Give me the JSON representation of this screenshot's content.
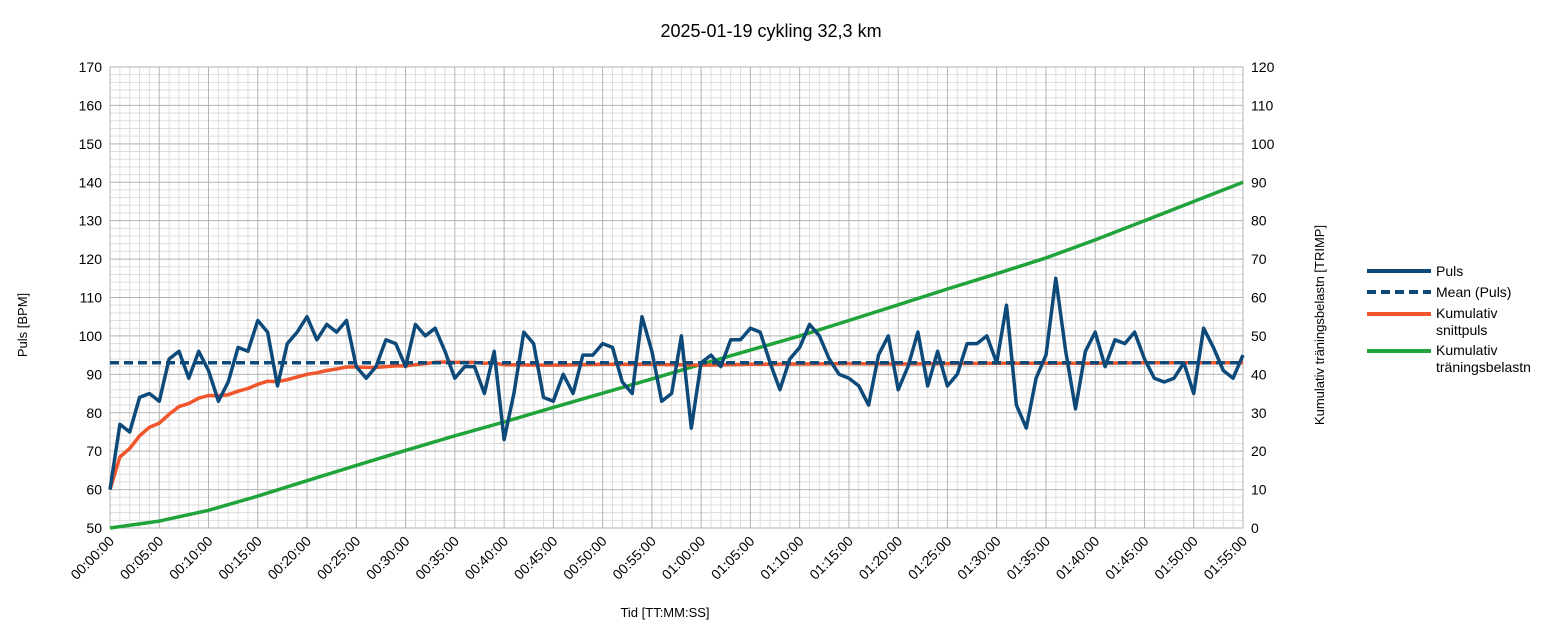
{
  "chart_data": {
    "type": "line",
    "title": "2025-01-19 cykling 32,3 km",
    "xlabel": "Tid [TT:MM:SS]",
    "ylabel": "Puls [BPM]",
    "y2label": "Kumulativ träningsbelastn [TRIMP]",
    "ylim": [
      50,
      170
    ],
    "y2lim": [
      0,
      120
    ],
    "xlim_minutes": [
      0,
      115
    ],
    "grid": true,
    "legend_position": "right",
    "x_ticks": [
      "00:00:00",
      "00:05:00",
      "00:10:00",
      "00:15:00",
      "00:20:00",
      "00:25:00",
      "00:30:00",
      "00:35:00",
      "00:40:00",
      "00:45:00",
      "00:50:00",
      "00:55:00",
      "01:00:00",
      "01:05:00",
      "01:10:00",
      "01:15:00",
      "01:20:00",
      "01:25:00",
      "01:30:00",
      "01:35:00",
      "01:40:00",
      "01:45:00",
      "01:50:00",
      "01:55:00"
    ],
    "y_ticks": [
      "50",
      "60",
      "70",
      "80",
      "90",
      "100",
      "110",
      "120",
      "130",
      "140",
      "150",
      "160",
      "170"
    ],
    "y2_ticks": [
      "0",
      "10",
      "20",
      "30",
      "40",
      "50",
      "60",
      "70",
      "80",
      "90",
      "100",
      "110",
      "120"
    ],
    "series": [
      {
        "name": "Puls",
        "axis": "left",
        "color": "#0d4a7a",
        "style": "solid",
        "x_minutes": [
          0,
          1,
          2,
          3,
          4,
          5,
          6,
          7,
          8,
          9,
          10,
          11,
          12,
          13,
          14,
          15,
          16,
          17,
          18,
          19,
          20,
          21,
          22,
          23,
          24,
          25,
          26,
          27,
          28,
          29,
          30,
          31,
          32,
          33,
          34,
          35,
          36,
          37,
          38,
          39,
          40,
          41,
          42,
          43,
          44,
          45,
          46,
          47,
          48,
          49,
          50,
          51,
          52,
          53,
          54,
          55,
          56,
          57,
          58,
          59,
          60,
          61,
          62,
          63,
          64,
          65,
          66,
          67,
          68,
          69,
          70,
          71,
          72,
          73,
          74,
          75,
          76,
          77,
          78,
          79,
          80,
          81,
          82,
          83,
          84,
          85,
          86,
          87,
          88,
          89,
          90,
          91,
          92,
          93,
          94,
          95,
          96,
          97,
          98,
          99,
          100,
          101,
          102,
          103,
          104,
          105,
          106,
          107,
          108,
          109,
          110,
          111,
          112,
          113,
          114,
          115
        ],
        "values": [
          60,
          77,
          75,
          84,
          85,
          83,
          94,
          96,
          89,
          96,
          91,
          83,
          88,
          97,
          96,
          104,
          101,
          87,
          98,
          101,
          105,
          99,
          103,
          101,
          104,
          92,
          89,
          92,
          99,
          98,
          92,
          103,
          100,
          102,
          96,
          89,
          92,
          92,
          85,
          96,
          73,
          85,
          101,
          98,
          84,
          83,
          90,
          85,
          95,
          95,
          98,
          97,
          88,
          85,
          105,
          96,
          83,
          85,
          100,
          76,
          93,
          95,
          92,
          99,
          99,
          102,
          101,
          93,
          86,
          94,
          97,
          103,
          100,
          94,
          90,
          89,
          87,
          82,
          95,
          100,
          86,
          92,
          101,
          87,
          96,
          87,
          90,
          98,
          98,
          100,
          93,
          108,
          82,
          76,
          89,
          95,
          115,
          96,
          81,
          96,
          101,
          92,
          99,
          98,
          101,
          94,
          89,
          88,
          89,
          93,
          85,
          102,
          97,
          91,
          89,
          95
        ]
      },
      {
        "name": "Mean (Puls)",
        "axis": "left",
        "color": "#0d4a7a",
        "style": "dashed",
        "x_minutes": [
          0,
          115
        ],
        "values": [
          93,
          93
        ]
      },
      {
        "name": "Kumulativ snittpuls",
        "axis": "left",
        "color": "#f0552b",
        "style": "solid",
        "x_minutes": [
          0,
          1,
          2,
          3,
          4,
          5,
          6,
          7,
          8,
          9,
          10,
          11,
          12,
          13,
          14,
          15,
          16,
          17,
          18,
          19,
          20,
          21,
          22,
          23,
          24,
          25,
          26,
          27,
          28,
          29,
          30,
          31,
          32,
          33,
          34,
          35,
          36,
          37,
          38,
          39,
          40,
          45,
          50,
          55,
          60,
          65,
          70,
          75,
          80,
          85,
          90,
          95,
          100,
          105,
          110,
          115
        ],
        "values": [
          60,
          68.5,
          70.7,
          74,
          76.2,
          77.3,
          79.6,
          81.6,
          82.4,
          83.8,
          84.5,
          84.4,
          84.7,
          85.6,
          86.3,
          87.4,
          88.2,
          88.1,
          88.6,
          89.3,
          90.0,
          90.4,
          91.0,
          91.4,
          91.9,
          91.9,
          91.8,
          91.8,
          92.0,
          92.2,
          92.2,
          92.5,
          92.8,
          93.1,
          93.2,
          93.1,
          93.1,
          93.1,
          92.9,
          93.0,
          92.5,
          92.4,
          92.6,
          92.6,
          92.4,
          92.6,
          92.7,
          92.8,
          92.7,
          92.8,
          92.9,
          92.9,
          92.9,
          93.0,
          93.0,
          93.0
        ]
      },
      {
        "name": "Kumulativ träningsbelastn",
        "axis": "right",
        "color": "#1fa33a",
        "style": "solid",
        "x_minutes": [
          0,
          5,
          10,
          15,
          20,
          25,
          30,
          35,
          40,
          45,
          50,
          55,
          60,
          65,
          70,
          75,
          80,
          85,
          90,
          95,
          100,
          105,
          110,
          115
        ],
        "values": [
          0,
          1.8,
          4.6,
          8.3,
          12.3,
          16.3,
          20.2,
          24,
          27.6,
          31.4,
          35.1,
          38.8,
          42.6,
          46.3,
          50,
          54,
          58.1,
          62.2,
          66.2,
          70.3,
          75,
          80,
          85,
          90
        ]
      }
    ]
  }
}
